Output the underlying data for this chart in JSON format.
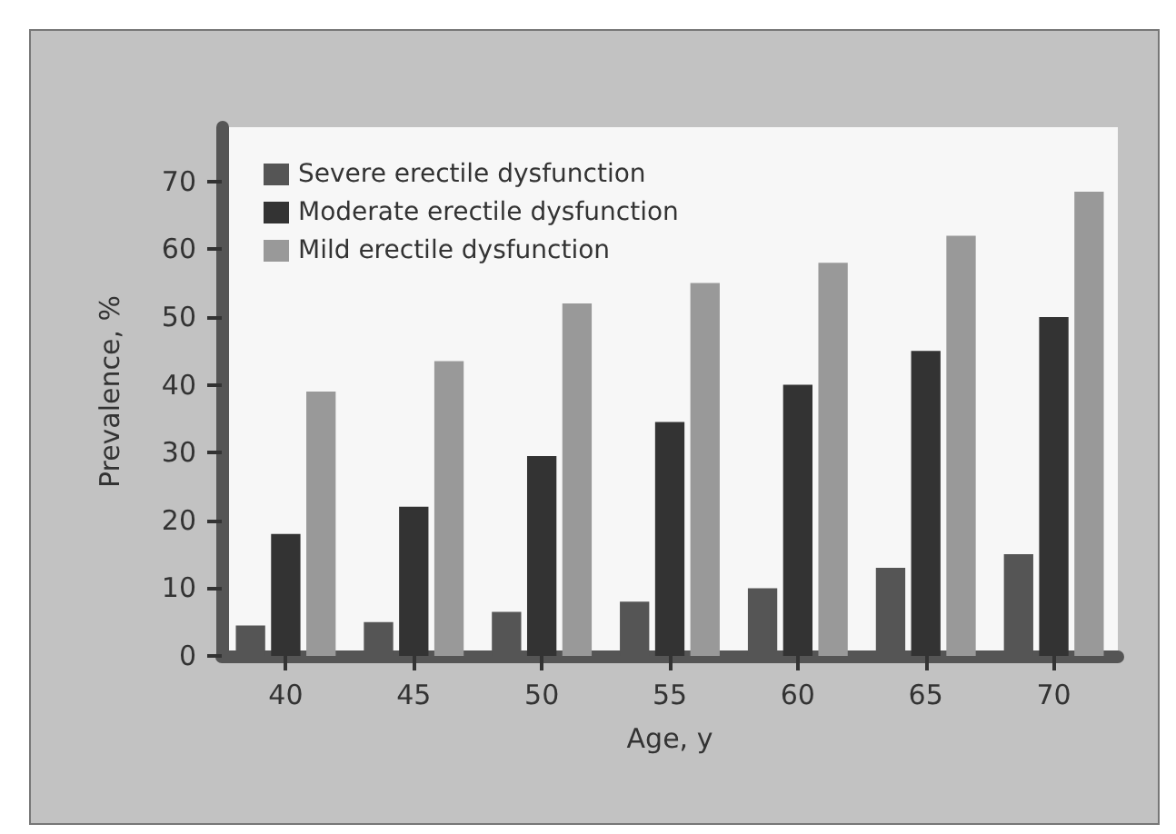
{
  "chart_data": {
    "type": "bar",
    "xlabel": "Age, y",
    "ylabel": "Prevalence, %",
    "categories": [
      "40",
      "45",
      "50",
      "55",
      "60",
      "65",
      "70"
    ],
    "series": [
      {
        "name": "Severe erectile dysfunction",
        "color": "#555555",
        "values": [
          4.5,
          5,
          6.5,
          8,
          10,
          13,
          15
        ]
      },
      {
        "name": "Moderate erectile dysfunction",
        "color": "#333333",
        "values": [
          18,
          22,
          29.5,
          34.5,
          40,
          45,
          50
        ]
      },
      {
        "name": "Mild erectile dysfunction",
        "color": "#999999",
        "values": [
          39,
          43.5,
          52,
          55,
          58,
          62,
          68.5
        ]
      }
    ],
    "ylim": [
      0,
      78
    ],
    "yticks": [
      0,
      10,
      20,
      30,
      40,
      50,
      60,
      70
    ],
    "grid": false,
    "legend": "top left"
  }
}
